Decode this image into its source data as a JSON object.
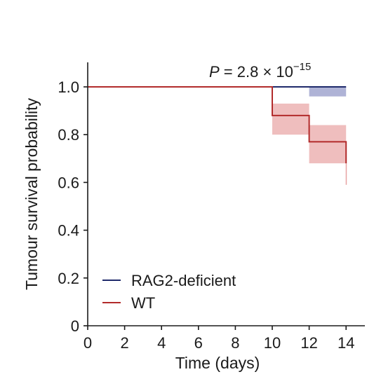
{
  "chart_data": {
    "type": "line",
    "subtype": "kaplan-meier step",
    "xlabel": "Time (days)",
    "ylabel": "Tumour survival probability",
    "xlim": [
      0,
      14.6
    ],
    "ylim": [
      0,
      1.1
    ],
    "xticks": [
      0,
      2,
      4,
      6,
      8,
      10,
      12,
      14
    ],
    "xtick_labels": [
      "0",
      "2",
      "4",
      "6",
      "8",
      "10",
      "12",
      "14"
    ],
    "yticks": [
      0,
      0.2,
      0.4,
      0.6,
      0.8,
      1.0
    ],
    "ytick_labels": [
      "0",
      "0.2",
      "0.4",
      "0.6",
      "0.8",
      "1.0"
    ],
    "grid": false,
    "legend_position": "bottom-left",
    "annotation": {
      "p_label": "P",
      "p_text": " = 2.8 × 10",
      "p_exponent": "−15"
    },
    "series": [
      {
        "name": "RAG2-deficient",
        "color": "#1f2a6b",
        "band_color": "#8d93c4",
        "steps": [
          [
            0,
            1.0
          ],
          [
            12,
            1.0
          ],
          [
            14,
            1.0
          ]
        ],
        "ci_bands": [
          [
            12,
            14,
            0.96,
            1.0
          ]
        ]
      },
      {
        "name": "WT",
        "color": "#b22b2b",
        "band_color": "#e8a3a3",
        "steps": [
          [
            0,
            1.0
          ],
          [
            10,
            0.88
          ],
          [
            12,
            0.77
          ],
          [
            14,
            0.68
          ]
        ],
        "ci_bands": [
          [
            10,
            12,
            0.8,
            0.93
          ],
          [
            12,
            14,
            0.68,
            0.84
          ]
        ],
        "tail": [
          14,
          0.59,
          0.68
        ]
      }
    ]
  }
}
